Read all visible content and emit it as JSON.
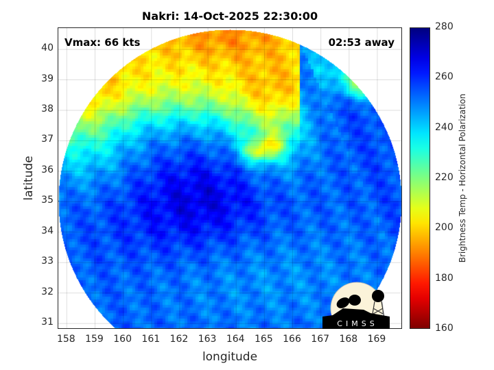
{
  "chart_data": {
    "type": "heatmap",
    "title": "Nakri: 14-Oct-2025 22:30:00",
    "annotations": {
      "left": "Vmax: 66 kts",
      "right": "02:53 away"
    },
    "xlabel": "longitude",
    "ylabel": "latitude",
    "xlim": [
      157.7,
      169.9
    ],
    "ylim": [
      30.8,
      40.7
    ],
    "xticks": [
      "158",
      "159",
      "160",
      "161",
      "162",
      "163",
      "164",
      "165",
      "166",
      "167",
      "168",
      "169"
    ],
    "yticks": [
      "31",
      "32",
      "33",
      "34",
      "35",
      "36",
      "37",
      "38",
      "39",
      "40"
    ],
    "grid": true,
    "colorbar": {
      "label": "Brightness Temp - Horizontal Polarization",
      "range": [
        160,
        280
      ],
      "ticks": [
        "160",
        "180",
        "200",
        "220",
        "240",
        "260",
        "280"
      ],
      "colormap": "jet (reversed: low=dark red, high=dark blue)"
    },
    "storm_center_approx": {
      "lon": 163,
      "lat": 35.5
    }
  },
  "logo": {
    "text": "CIMSS"
  }
}
